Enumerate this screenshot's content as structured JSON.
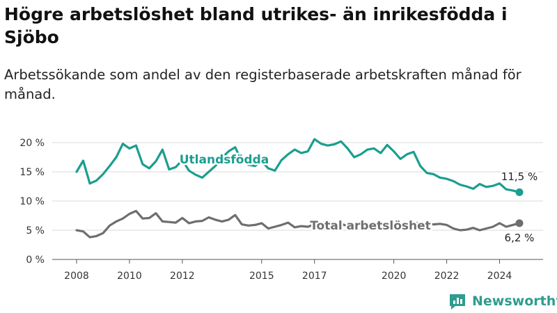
{
  "chart_data": {
    "type": "line",
    "title": "Högre arbetslöshet bland utrikes- än inrikesfödda i Sjöbo",
    "subtitle": "Arbetssökande som andel av den registerbaserade arbetskraften månad för månad.",
    "ylim": [
      0,
      20
    ],
    "yticks": [
      {
        "value": 0,
        "label": "0 %"
      },
      {
        "value": 5,
        "label": "5 %"
      },
      {
        "value": 10,
        "label": "10 %"
      },
      {
        "value": 15,
        "label": "15 %"
      },
      {
        "value": 20,
        "label": "20 %"
      }
    ],
    "xticks": [
      "2008",
      "2010",
      "2012",
      "2015",
      "2017",
      "2020",
      "2022",
      "2024"
    ],
    "grid": "horizontal",
    "series": [
      {
        "name": "Utlandsfödda",
        "color": "#1a9e8f",
        "end_label": "11,5 %",
        "points": [
          [
            "2008-01",
            15.0
          ],
          [
            "2008-04",
            16.9
          ],
          [
            "2008-07",
            13.0
          ],
          [
            "2008-10",
            13.5
          ],
          [
            "2009-01",
            14.6
          ],
          [
            "2009-04",
            16.0
          ],
          [
            "2009-07",
            17.5
          ],
          [
            "2009-10",
            19.8
          ],
          [
            "2010-01",
            19.0
          ],
          [
            "2010-04",
            19.5
          ],
          [
            "2010-07",
            16.3
          ],
          [
            "2010-10",
            15.6
          ],
          [
            "2011-01",
            16.8
          ],
          [
            "2011-04",
            18.8
          ],
          [
            "2011-07",
            15.4
          ],
          [
            "2011-10",
            15.8
          ],
          [
            "2012-01",
            17.0
          ],
          [
            "2012-04",
            15.2
          ],
          [
            "2012-07",
            14.5
          ],
          [
            "2012-10",
            14.0
          ],
          [
            "2013-01",
            15.0
          ],
          [
            "2013-04",
            16.0
          ],
          [
            "2013-07",
            17.4
          ],
          [
            "2013-10",
            18.5
          ],
          [
            "2014-01",
            19.2
          ],
          [
            "2014-04",
            16.8
          ],
          [
            "2014-07",
            16.2
          ],
          [
            "2014-10",
            16.0
          ],
          [
            "2015-01",
            16.8
          ],
          [
            "2015-04",
            15.6
          ],
          [
            "2015-07",
            15.2
          ],
          [
            "2015-10",
            17.0
          ],
          [
            "2016-01",
            18.0
          ],
          [
            "2016-04",
            18.8
          ],
          [
            "2016-07",
            18.2
          ],
          [
            "2016-10",
            18.5
          ],
          [
            "2017-01",
            20.6
          ],
          [
            "2017-04",
            19.8
          ],
          [
            "2017-07",
            19.5
          ],
          [
            "2017-10",
            19.7
          ],
          [
            "2018-01",
            20.2
          ],
          [
            "2018-04",
            19.0
          ],
          [
            "2018-07",
            17.5
          ],
          [
            "2018-10",
            18.0
          ],
          [
            "2019-01",
            18.8
          ],
          [
            "2019-04",
            19.0
          ],
          [
            "2019-07",
            18.2
          ],
          [
            "2019-10",
            19.6
          ],
          [
            "2020-01",
            18.5
          ],
          [
            "2020-04",
            17.2
          ],
          [
            "2020-07",
            18.0
          ],
          [
            "2020-10",
            18.4
          ],
          [
            "2021-01",
            16.0
          ],
          [
            "2021-04",
            14.8
          ],
          [
            "2021-07",
            14.6
          ],
          [
            "2021-10",
            14.0
          ],
          [
            "2022-01",
            13.8
          ],
          [
            "2022-04",
            13.4
          ],
          [
            "2022-07",
            12.8
          ],
          [
            "2022-10",
            12.5
          ],
          [
            "2023-01",
            12.1
          ],
          [
            "2023-04",
            12.9
          ],
          [
            "2023-07",
            12.4
          ],
          [
            "2023-10",
            12.6
          ],
          [
            "2024-01",
            13.0
          ],
          [
            "2024-04",
            12.0
          ],
          [
            "2024-07",
            11.8
          ],
          [
            "2024-10",
            11.5
          ]
        ]
      },
      {
        "name": "Total arbetslöshet",
        "color": "#6e6e70",
        "end_label": "6,2 %",
        "points": [
          [
            "2008-01",
            5.0
          ],
          [
            "2008-04",
            4.8
          ],
          [
            "2008-07",
            3.8
          ],
          [
            "2008-10",
            4.0
          ],
          [
            "2009-01",
            4.5
          ],
          [
            "2009-04",
            5.8
          ],
          [
            "2009-07",
            6.5
          ],
          [
            "2009-10",
            7.0
          ],
          [
            "2010-01",
            7.8
          ],
          [
            "2010-04",
            8.3
          ],
          [
            "2010-07",
            7.0
          ],
          [
            "2010-10",
            7.1
          ],
          [
            "2011-01",
            7.9
          ],
          [
            "2011-04",
            6.5
          ],
          [
            "2011-07",
            6.4
          ],
          [
            "2011-10",
            6.3
          ],
          [
            "2012-01",
            7.1
          ],
          [
            "2012-04",
            6.2
          ],
          [
            "2012-07",
            6.5
          ],
          [
            "2012-10",
            6.6
          ],
          [
            "2013-01",
            7.2
          ],
          [
            "2013-04",
            6.8
          ],
          [
            "2013-07",
            6.5
          ],
          [
            "2013-10",
            6.8
          ],
          [
            "2014-01",
            7.6
          ],
          [
            "2014-04",
            6.0
          ],
          [
            "2014-07",
            5.8
          ],
          [
            "2014-10",
            5.9
          ],
          [
            "2015-01",
            6.2
          ],
          [
            "2015-04",
            5.3
          ],
          [
            "2015-07",
            5.6
          ],
          [
            "2015-10",
            5.9
          ],
          [
            "2016-01",
            6.3
          ],
          [
            "2016-04",
            5.5
          ],
          [
            "2016-07",
            5.7
          ],
          [
            "2016-10",
            5.6
          ],
          [
            "2017-01",
            6.0
          ],
          [
            "2017-04",
            5.7
          ],
          [
            "2017-07",
            5.6
          ],
          [
            "2017-10",
            5.8
          ],
          [
            "2018-01",
            6.1
          ],
          [
            "2018-04",
            5.7
          ],
          [
            "2018-07",
            5.5
          ],
          [
            "2018-10",
            5.9
          ],
          [
            "2019-01",
            6.2
          ],
          [
            "2019-04",
            5.8
          ],
          [
            "2019-07",
            5.7
          ],
          [
            "2019-10",
            6.0
          ],
          [
            "2020-01",
            6.2
          ],
          [
            "2020-04",
            6.0
          ],
          [
            "2020-07",
            6.1
          ],
          [
            "2020-10",
            6.3
          ],
          [
            "2021-01",
            6.2
          ],
          [
            "2021-04",
            6.1
          ],
          [
            "2021-07",
            6.0
          ],
          [
            "2021-10",
            6.1
          ],
          [
            "2022-01",
            5.9
          ],
          [
            "2022-04",
            5.3
          ],
          [
            "2022-07",
            5.0
          ],
          [
            "2022-10",
            5.1
          ],
          [
            "2023-01",
            5.4
          ],
          [
            "2023-04",
            5.0
          ],
          [
            "2023-07",
            5.3
          ],
          [
            "2023-10",
            5.6
          ],
          [
            "2024-01",
            6.2
          ],
          [
            "2024-04",
            5.6
          ],
          [
            "2024-07",
            5.9
          ],
          [
            "2024-10",
            6.2
          ]
        ]
      }
    ]
  },
  "brand": {
    "name": "Newsworthy",
    "color": "#2e9c8f"
  }
}
